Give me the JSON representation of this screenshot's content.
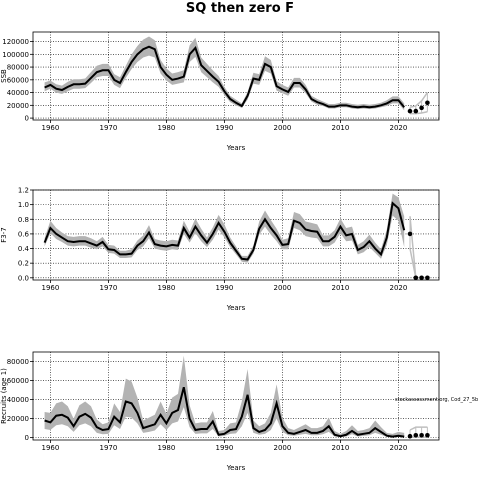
{
  "figure": {
    "title": "SQ then zero F",
    "watermark": "stockassessment.org, Cod_27_5b"
  },
  "colors": {
    "band": "#b3b3b3",
    "line": "#000000",
    "grid": "#000000",
    "forecast_band": "#bfbfbf"
  },
  "chart_data": [
    {
      "id": "ssb",
      "type": "line",
      "xlabel": "Years",
      "ylabel": "SSB",
      "xlim": [
        1957,
        2027
      ],
      "ylim": [
        -3000,
        135000
      ],
      "xticks": [
        1960,
        1970,
        1980,
        1990,
        2000,
        2010,
        2020
      ],
      "yticks": [
        0,
        20000,
        40000,
        60000,
        80000,
        100000,
        120000
      ],
      "series": [
        {
          "x": [
            1959,
            1960,
            1961,
            1962,
            1963,
            1964,
            1965,
            1966,
            1967,
            1968,
            1969,
            1970,
            1971,
            1972,
            1973,
            1974,
            1975,
            1976,
            1977,
            1978,
            1979,
            1980,
            1981,
            1982,
            1983,
            1984,
            1985,
            1986,
            1987,
            1988,
            1989,
            1990,
            1991,
            1992,
            1993,
            1994,
            1995,
            1996,
            1997,
            1998,
            1999,
            2000,
            2001,
            2002,
            2003,
            2004,
            2005,
            2006,
            2007,
            2008,
            2009,
            2010,
            2011,
            2012,
            2013,
            2014,
            2015,
            2016,
            2017,
            2018,
            2019,
            2020,
            2021
          ],
          "values": [
            48000,
            52000,
            46000,
            44000,
            49000,
            53000,
            53000,
            54000,
            63000,
            72000,
            75000,
            75000,
            60000,
            55000,
            72000,
            88000,
            100000,
            108000,
            112000,
            108000,
            80000,
            68000,
            60000,
            62000,
            65000,
            100000,
            110000,
            83000,
            74000,
            65000,
            57000,
            42000,
            30000,
            24000,
            19000,
            35000,
            62000,
            60000,
            85000,
            80000,
            50000,
            45000,
            41000,
            55000,
            55000,
            45000,
            30000,
            25000,
            22000,
            18000,
            18000,
            20000,
            20000,
            18000,
            17000,
            18000,
            17000,
            18000,
            20000,
            23000,
            28000,
            28000,
            17000
          ],
          "lower": [
            42000,
            46000,
            40000,
            38000,
            42000,
            46000,
            46000,
            47000,
            55000,
            64000,
            66000,
            66000,
            52000,
            47000,
            63000,
            77000,
            88000,
            95000,
            98000,
            95000,
            70000,
            59000,
            52000,
            54000,
            56000,
            88000,
            96000,
            72000,
            64000,
            56000,
            49000,
            36000,
            25000,
            20000,
            16000,
            29000,
            54000,
            52000,
            74000,
            70000,
            43000,
            39000,
            35000,
            48000,
            48000,
            39000,
            26000,
            21000,
            19000,
            15000,
            15000,
            17000,
            17000,
            15000,
            14000,
            15000,
            14000,
            15000,
            17000,
            19000,
            23000,
            23000,
            12000
          ],
          "upper": [
            56000,
            59000,
            53000,
            51000,
            57000,
            61000,
            61000,
            62000,
            72000,
            82000,
            85000,
            85000,
            69000,
            64000,
            82000,
            100000,
            113000,
            123000,
            128000,
            122000,
            91000,
            78000,
            70000,
            72000,
            75000,
            114000,
            126000,
            95000,
            85000,
            75000,
            66000,
            49000,
            35000,
            29000,
            23000,
            41000,
            71000,
            69000,
            97000,
            91000,
            58000,
            52000,
            48000,
            63000,
            63000,
            52000,
            35000,
            30000,
            26000,
            22000,
            22000,
            24000,
            24000,
            22000,
            21000,
            22000,
            21000,
            22000,
            24000,
            28000,
            34000,
            34000,
            23000
          ]
        }
      ],
      "forecast": {
        "x": [
          2022,
          2023,
          2024,
          2025
        ],
        "values": [
          11000,
          11000,
          16000,
          24000
        ],
        "lower": [
          7000,
          7000,
          8000,
          10000
        ],
        "upper": [
          17000,
          19000,
          27000,
          40000
        ]
      }
    },
    {
      "id": "fbar",
      "type": "line",
      "xlabel": "Years",
      "ylabel": "F3-7",
      "xlim": [
        1957,
        2027
      ],
      "ylim": [
        -0.03,
        1.2
      ],
      "xticks": [
        1960,
        1970,
        1980,
        1990,
        2000,
        2010,
        2020
      ],
      "yticks": [
        "0.0",
        "0.2",
        "0.4",
        "0.6",
        "0.8",
        "1.0",
        "1.2"
      ],
      "series": [
        {
          "x": [
            1959,
            1960,
            1961,
            1962,
            1963,
            1964,
            1965,
            1966,
            1967,
            1968,
            1969,
            1970,
            1971,
            1972,
            1973,
            1974,
            1975,
            1976,
            1977,
            1978,
            1979,
            1980,
            1981,
            1982,
            1983,
            1984,
            1985,
            1986,
            1987,
            1988,
            1989,
            1990,
            1991,
            1992,
            1993,
            1994,
            1995,
            1996,
            1997,
            1998,
            1999,
            2000,
            2001,
            2002,
            2003,
            2004,
            2005,
            2006,
            2007,
            2008,
            2009,
            2010,
            2011,
            2012,
            2013,
            2014,
            2015,
            2016,
            2017,
            2018,
            2019,
            2020,
            2021
          ],
          "values": [
            0.48,
            0.68,
            0.6,
            0.55,
            0.5,
            0.49,
            0.5,
            0.5,
            0.47,
            0.44,
            0.49,
            0.39,
            0.38,
            0.32,
            0.32,
            0.33,
            0.44,
            0.5,
            0.62,
            0.46,
            0.44,
            0.43,
            0.45,
            0.44,
            0.68,
            0.55,
            0.7,
            0.58,
            0.48,
            0.6,
            0.75,
            0.63,
            0.48,
            0.37,
            0.26,
            0.25,
            0.38,
            0.67,
            0.8,
            0.68,
            0.58,
            0.45,
            0.46,
            0.78,
            0.75,
            0.66,
            0.64,
            0.63,
            0.5,
            0.5,
            0.56,
            0.7,
            0.58,
            0.6,
            0.38,
            0.42,
            0.5,
            0.4,
            0.32,
            0.55,
            1.02,
            0.95,
            0.65
          ],
          "lower": [
            0.43,
            0.61,
            0.53,
            0.49,
            0.44,
            0.43,
            0.44,
            0.44,
            0.41,
            0.39,
            0.43,
            0.34,
            0.33,
            0.27,
            0.27,
            0.28,
            0.38,
            0.43,
            0.54,
            0.4,
            0.38,
            0.37,
            0.39,
            0.38,
            0.6,
            0.48,
            0.61,
            0.5,
            0.42,
            0.52,
            0.66,
            0.55,
            0.42,
            0.32,
            0.22,
            0.21,
            0.33,
            0.59,
            0.7,
            0.59,
            0.5,
            0.39,
            0.39,
            0.68,
            0.65,
            0.57,
            0.55,
            0.54,
            0.43,
            0.43,
            0.48,
            0.61,
            0.5,
            0.51,
            0.32,
            0.35,
            0.42,
            0.34,
            0.26,
            0.45,
            0.85,
            0.78,
            0.42
          ],
          "upper": [
            0.54,
            0.78,
            0.68,
            0.62,
            0.57,
            0.56,
            0.57,
            0.57,
            0.54,
            0.5,
            0.56,
            0.45,
            0.44,
            0.37,
            0.37,
            0.39,
            0.51,
            0.58,
            0.72,
            0.53,
            0.51,
            0.5,
            0.52,
            0.51,
            0.78,
            0.63,
            0.81,
            0.67,
            0.55,
            0.69,
            0.86,
            0.73,
            0.55,
            0.43,
            0.3,
            0.3,
            0.44,
            0.77,
            0.92,
            0.79,
            0.67,
            0.52,
            0.54,
            0.9,
            0.87,
            0.77,
            0.75,
            0.73,
            0.58,
            0.58,
            0.65,
            0.81,
            0.68,
            0.7,
            0.45,
            0.5,
            0.59,
            0.48,
            0.39,
            0.66,
            1.15,
            1.1,
            0.84
          ]
        }
      ],
      "forecast": {
        "x": [
          2022,
          2023,
          2024,
          2025
        ],
        "values": [
          0.6,
          0.0,
          0.0,
          0.0
        ],
        "lower": [
          0.4,
          0.0,
          0.0,
          0.0
        ],
        "upper": [
          0.84,
          0.0,
          0.0,
          0.0
        ]
      }
    },
    {
      "id": "recruits",
      "type": "line",
      "xlabel": "Years",
      "ylabel": "Recruits (age 1)",
      "xlim": [
        1957,
        2027
      ],
      "ylim": [
        -2500,
        90000
      ],
      "xticks": [
        1960,
        1970,
        1980,
        1990,
        2000,
        2010,
        2020
      ],
      "yticks": [
        0,
        20000,
        40000,
        60000,
        80000
      ],
      "series": [
        {
          "x": [
            1959,
            1960,
            1961,
            1962,
            1963,
            1964,
            1965,
            1966,
            1967,
            1968,
            1969,
            1970,
            1971,
            1972,
            1973,
            1974,
            1975,
            1976,
            1977,
            1978,
            1979,
            1980,
            1981,
            1982,
            1983,
            1984,
            1985,
            1986,
            1987,
            1988,
            1989,
            1990,
            1991,
            1992,
            1993,
            1994,
            1995,
            1996,
            1997,
            1998,
            1999,
            2000,
            2001,
            2002,
            2003,
            2004,
            2005,
            2006,
            2007,
            2008,
            2009,
            2010,
            2011,
            2012,
            2013,
            2014,
            2015,
            2016,
            2017,
            2018,
            2019,
            2020,
            2021
          ],
          "values": [
            18000,
            16000,
            23000,
            24000,
            21000,
            12000,
            22000,
            25000,
            21000,
            11000,
            8000,
            9000,
            22000,
            16000,
            38000,
            36000,
            26000,
            10000,
            12000,
            14000,
            24000,
            15000,
            26000,
            29000,
            53000,
            20000,
            8000,
            9000,
            9000,
            17000,
            3000,
            4000,
            8000,
            9000,
            22000,
            45000,
            10000,
            6000,
            8000,
            15000,
            36000,
            12000,
            5000,
            4000,
            6000,
            8000,
            5000,
            5000,
            7000,
            12000,
            3000,
            1500,
            3000,
            7000,
            3000,
            4000,
            5000,
            10000,
            6000,
            2000,
            1000,
            2000,
            1000
          ],
          "lower": [
            9000,
            8000,
            13000,
            14000,
            12000,
            6000,
            13000,
            15000,
            12000,
            5000,
            3500,
            4000,
            13000,
            9000,
            22000,
            21000,
            15000,
            5000,
            6000,
            7500,
            14000,
            8000,
            15000,
            17000,
            32000,
            11000,
            4000,
            4500,
            4500,
            9000,
            1200,
            1800,
            4000,
            4500,
            12000,
            26000,
            5000,
            3000,
            4000,
            8000,
            20000,
            6000,
            2500,
            2000,
            3000,
            4000,
            2500,
            2500,
            3500,
            6000,
            1200,
            500,
            1200,
            3500,
            1200,
            1800,
            2500,
            5000,
            3000,
            800,
            300,
            700,
            200
          ],
          "upper": [
            27000,
            26000,
            36000,
            38000,
            33000,
            20000,
            34000,
            38000,
            33000,
            19000,
            14000,
            16000,
            36000,
            27000,
            62000,
            59000,
            42000,
            18000,
            21000,
            24000,
            38000,
            25000,
            42000,
            46000,
            86000,
            34000,
            15000,
            16000,
            16000,
            28000,
            7000,
            8000,
            15000,
            16000,
            38000,
            72000,
            18000,
            12000,
            15000,
            26000,
            56000,
            21000,
            10000,
            8000,
            11000,
            14000,
            10000,
            10000,
            12000,
            21000,
            7000,
            4000,
            7000,
            13000,
            7000,
            8000,
            10000,
            18000,
            11000,
            5000,
            4000,
            6000,
            5000
          ]
        }
      ],
      "forecast": {
        "x": [
          2022,
          2023,
          2024,
          2025
        ],
        "values": [
          1500,
          2500,
          2500,
          2500
        ],
        "lower": [
          300,
          500,
          500,
          500
        ],
        "upper": [
          8000,
          11000,
          11000,
          11000
        ]
      }
    }
  ]
}
